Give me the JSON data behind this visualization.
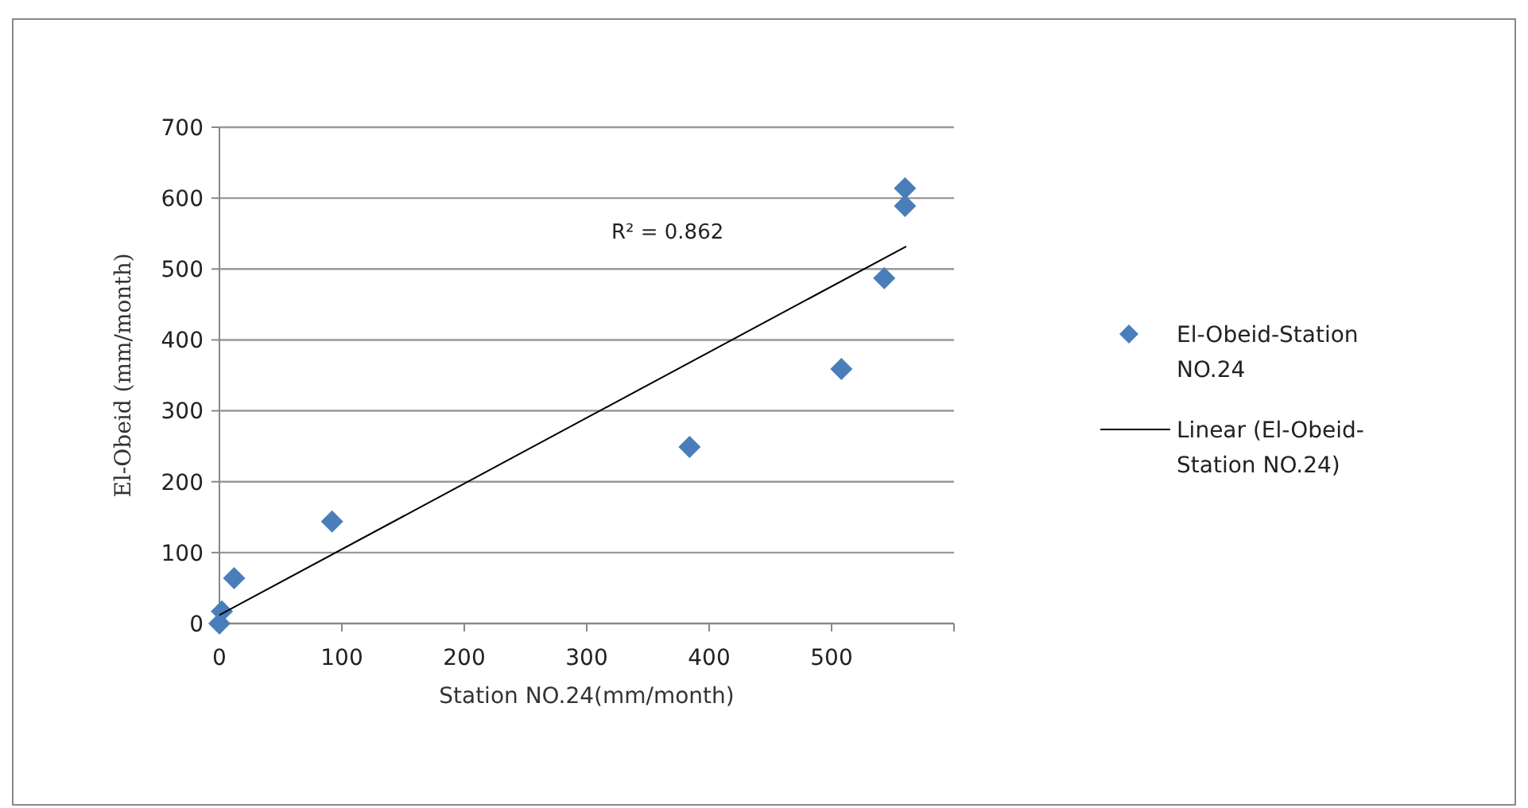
{
  "chart_data": {
    "type": "scatter",
    "xlabel": "Station NO.24(mm/month)",
    "ylabel": "El-Obeid (mm/month)",
    "xlim": [
      0,
      600
    ],
    "xticks": [
      0,
      100,
      200,
      300,
      400,
      500,
      {
        "value": 600,
        "label": null
      }
    ],
    "ylim": [
      0,
      700
    ],
    "yticks": [
      0,
      100,
      200,
      300,
      400,
      500,
      600,
      700
    ],
    "grid": "y",
    "legend": "right",
    "annotations": [
      "R² = 0.862"
    ],
    "series": [
      {
        "name": "El-Obeid-Station NO.24",
        "color": "#4a7ebb",
        "marker": "diamond",
        "x": [
          0,
          2,
          12,
          92,
          384,
          508,
          543,
          560,
          560
        ],
        "values": [
          0,
          17,
          64,
          144,
          249,
          359,
          487,
          589,
          614
        ]
      },
      {
        "name": "Linear (El-Obeid-Station NO.24)",
        "type": "line",
        "color": "#000000",
        "marker": "none",
        "line_style": "solid",
        "x": [
          0,
          561
        ],
        "values": [
          12,
          532
        ]
      }
    ]
  }
}
